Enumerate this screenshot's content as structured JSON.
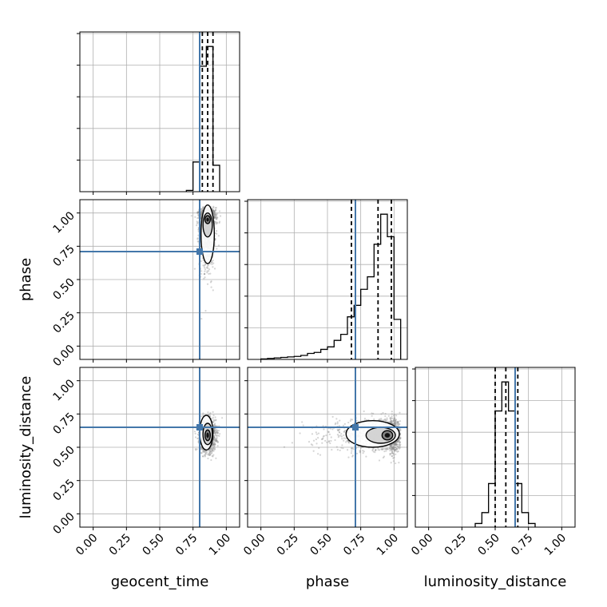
{
  "chart_data": {
    "type": "corner",
    "parameters": [
      "geocent_time",
      "phase",
      "luminosity_distance"
    ],
    "axis_labels": {
      "geocent_time": "geocent_time",
      "phase": "phase",
      "luminosity_distance": "luminosity_distance"
    },
    "axis_range": [
      -0.1,
      1.1
    ],
    "ticks": [
      0.0,
      0.25,
      0.5,
      0.75,
      1.0
    ],
    "tick_labels": [
      "0.00",
      "0.25",
      "0.50",
      "0.75",
      "1.00"
    ],
    "grid": true,
    "truths": {
      "geocent_time": 0.8,
      "phase": 0.71,
      "luminosity_distance": 0.65
    },
    "colors": {
      "truth": "#4477aa",
      "histogram": "#000000",
      "scatter": "#888888",
      "grid": "#b0b0b0"
    },
    "histograms": {
      "geocent_time": {
        "bin_edges": [
          0.7,
          0.75,
          0.8,
          0.85,
          0.9,
          0.95
        ],
        "counts": [
          2,
          45,
          190,
          220,
          40
        ],
        "quantiles": [
          0.82,
          0.86,
          0.9
        ]
      },
      "phase": {
        "bin_edges": [
          0.0,
          0.05,
          0.1,
          0.15,
          0.2,
          0.25,
          0.3,
          0.35,
          0.4,
          0.45,
          0.5,
          0.55,
          0.6,
          0.65,
          0.7,
          0.75,
          0.8,
          0.85,
          0.9,
          0.95,
          1.0,
          1.05
        ],
        "counts": [
          1,
          2,
          3,
          4,
          5,
          6,
          8,
          12,
          14,
          20,
          25,
          38,
          50,
          85,
          108,
          140,
          165,
          230,
          290,
          245,
          80
        ],
        "quantiles": [
          0.68,
          0.88,
          0.98
        ]
      },
      "luminosity_distance": {
        "bin_edges": [
          0.35,
          0.4,
          0.45,
          0.5,
          0.55,
          0.6,
          0.65,
          0.7,
          0.75,
          0.8
        ],
        "counts": [
          5,
          20,
          60,
          160,
          200,
          160,
          60,
          20,
          5
        ],
        "quantiles": [
          0.5,
          0.58,
          0.67
        ]
      }
    },
    "pairs": [
      {
        "x": "geocent_time",
        "y": "phase",
        "density": {
          "x_center": 0.86,
          "x_sigma": 0.03,
          "y_mode": 0.96,
          "y_sigma_low": 0.18,
          "y_sigma_high": 0.04
        },
        "contour_levels": [
          {
            "cx": 0.86,
            "cy": 0.95,
            "rx": 0.02,
            "ry": 0.03
          },
          {
            "cx": 0.86,
            "cy": 0.91,
            "rx": 0.035,
            "ry": 0.09
          },
          {
            "cx": 0.86,
            "cy": 0.84,
            "rx": 0.05,
            "ry": 0.22
          }
        ]
      },
      {
        "x": "geocent_time",
        "y": "luminosity_distance",
        "density": {
          "x_center": 0.86,
          "x_sigma": 0.03,
          "y_mode": 0.59,
          "y_sigma_low": 0.06,
          "y_sigma_high": 0.06
        },
        "contour_levels": [
          {
            "cx": 0.86,
            "cy": 0.59,
            "rx": 0.02,
            "ry": 0.04
          },
          {
            "cx": 0.86,
            "cy": 0.6,
            "rx": 0.035,
            "ry": 0.08
          },
          {
            "cx": 0.85,
            "cy": 0.61,
            "rx": 0.05,
            "ry": 0.13
          }
        ]
      },
      {
        "x": "phase",
        "y": "luminosity_distance",
        "density": {
          "x_center": 0.97,
          "x_sigma_low": 0.22,
          "x_sigma_high": 0.04,
          "y_mode": 0.59,
          "y_sigma_low": 0.06,
          "y_sigma_high": 0.06
        },
        "contour_levels": [
          {
            "cx": 0.95,
            "cy": 0.59,
            "rx": 0.04,
            "ry": 0.035
          },
          {
            "cx": 0.9,
            "cy": 0.59,
            "rx": 0.11,
            "ry": 0.06
          },
          {
            "cx": 0.84,
            "cy": 0.6,
            "rx": 0.2,
            "ry": 0.1
          }
        ]
      }
    ]
  }
}
